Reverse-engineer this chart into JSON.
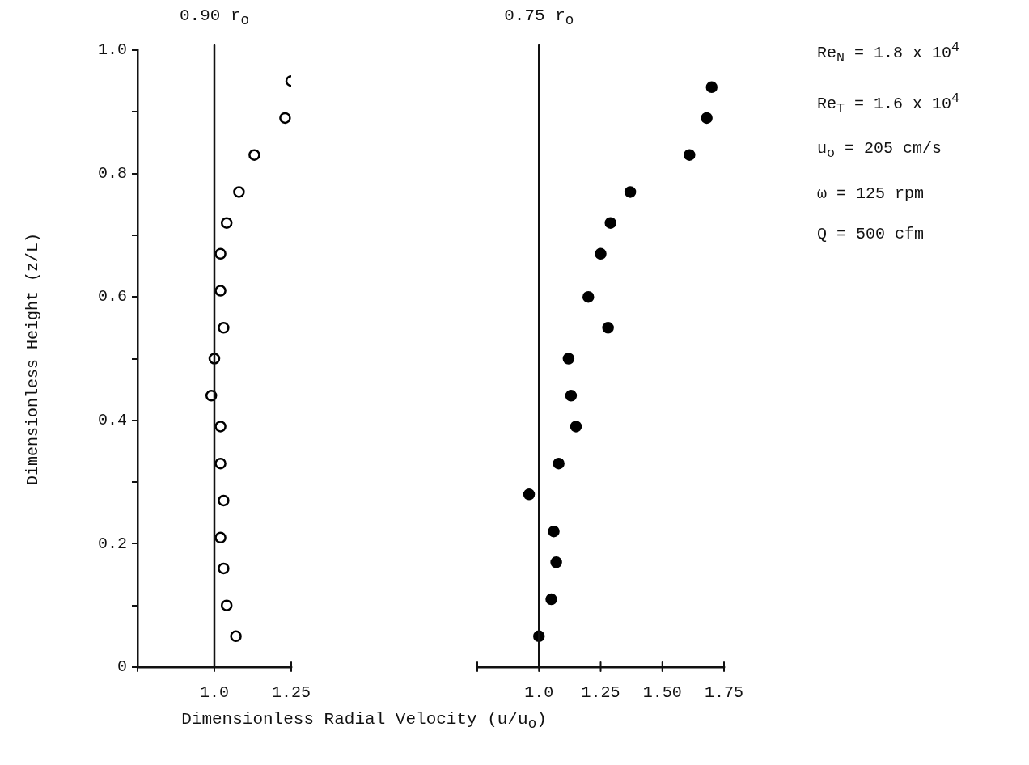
{
  "chart_data": [
    {
      "type": "scatter",
      "title": "0.90 r$_{o}$",
      "xlabel": "Dimensionless Radial Velocity (u/u$_{o}$)",
      "ylabel": "Dimensionless Height (z/L)",
      "series": [
        {
          "color": "#000000",
          "x": [
            1.25,
            1.23,
            1.13,
            1.08,
            1.04,
            1.02,
            1.02,
            1.03,
            1.0,
            0.99,
            1.02,
            1.02,
            1.03,
            1.02,
            1.03,
            1.04,
            1.07
          ],
          "values": [
            0.95,
            0.89,
            0.83,
            0.77,
            0.72,
            0.67,
            0.61,
            0.55,
            0.5,
            0.44,
            0.39,
            0.33,
            0.27,
            0.21,
            0.16,
            0.1,
            0.05
          ]
        }
      ],
      "xlim": [
        0.75,
        1.25
      ],
      "xticks": [
        {
          "value": 0.75,
          "label": null
        },
        {
          "value": 1,
          "label": "1.0"
        },
        {
          "value": 1.25,
          "label": "1.25"
        }
      ],
      "ylim": [
        0,
        1
      ],
      "yticks": [
        {
          "value": 0,
          "label": "0"
        },
        {
          "value": 0.1,
          "label": null
        },
        0.2,
        {
          "value": 0.3,
          "label": null
        },
        0.4,
        {
          "value": 0.5,
          "label": null
        },
        0.6,
        {
          "value": 0.7,
          "label": null
        },
        0.8,
        {
          "value": 0.9,
          "label": null
        },
        {
          "value": 1,
          "label": "1.0"
        }
      ],
      "marker": "circle",
      "ref_lines": [
        {
          "axis": "x",
          "value": 1
        }
      ]
    },
    {
      "type": "scatter",
      "title": "0.75 r$_{o}$",
      "series": [
        {
          "color": "#000000",
          "x": [
            1.7,
            1.68,
            1.61,
            1.37,
            1.29,
            1.25,
            1.2,
            1.28,
            1.12,
            1.13,
            1.15,
            1.08,
            0.96,
            1.06,
            1.07,
            1.05,
            1.0
          ],
          "values": [
            0.94,
            0.89,
            0.83,
            0.77,
            0.72,
            0.67,
            0.6,
            0.55,
            0.5,
            0.44,
            0.39,
            0.33,
            0.28,
            0.22,
            0.17,
            0.11,
            0.05
          ]
        }
      ],
      "xlim": [
        0.75,
        1.75
      ],
      "xticks": [
        {
          "value": 0.75,
          "label": null
        },
        {
          "value": 1,
          "label": "1.0"
        },
        {
          "value": 1.25,
          "label": "1.25"
        },
        {
          "value": 1.5,
          "label": "1.50"
        },
        {
          "value": 1.75,
          "label": "1.75"
        }
      ],
      "ylim": [
        0,
        1
      ],
      "yticks": [
        0,
        0.2,
        0.4,
        0.6,
        0.8,
        1
      ],
      "tick_labels": "x",
      "marker": "circle",
      "ref_lines": [
        {
          "axis": "x",
          "value": 1
        }
      ],
      "annotations": [
        "Re$_{N}$ = 1.8 x 10$^{4}$",
        "Re$_{T}$ = 1.6 x 10$^{4}$",
        "u$_{o}$ = 205 cm/s",
        "ω = 125 rpm",
        "Q = 500 cfm"
      ]
    }
  ]
}
